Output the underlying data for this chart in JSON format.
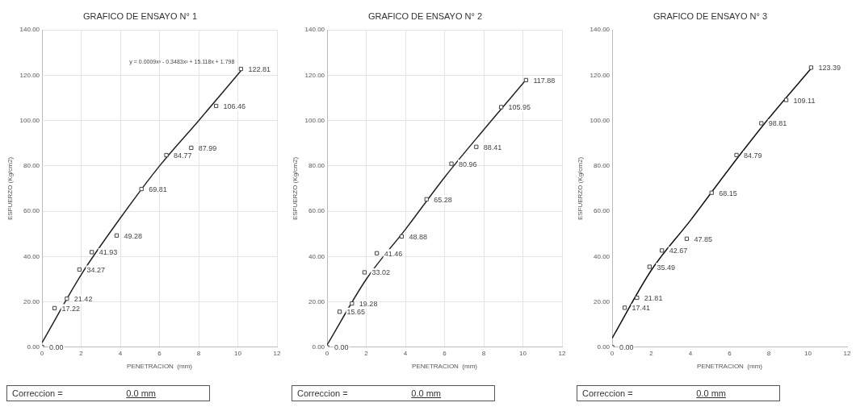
{
  "chart_data": [
    {
      "type": "scatter",
      "title": "GRAFICO DE ENSAYO N° 1",
      "xlabel": "PENETRACION  (mm)",
      "ylabel": "ESFUERZO (Kg/cm2)",
      "xlim": [
        0,
        12
      ],
      "xticks": [
        0,
        2,
        4,
        6,
        8,
        10,
        12
      ],
      "ylim": [
        0,
        140
      ],
      "yticks": [
        {
          "value": 0,
          "label": "0.00"
        },
        {
          "value": 20,
          "label": "20.00"
        },
        {
          "value": 40,
          "label": "40.00"
        },
        {
          "value": 60,
          "label": "60.00"
        },
        {
          "value": 80,
          "label": "80.00"
        },
        {
          "value": 100,
          "label": "100.00"
        },
        {
          "value": 120,
          "label": "120.00"
        },
        {
          "value": 140,
          "label": "140.00"
        }
      ],
      "grid": true,
      "legend": false,
      "series": [
        {
          "type": "scatter",
          "marker": "square",
          "color": "#444444",
          "x": [
            0,
            0.64,
            1.27,
            1.91,
            2.54,
            3.81,
            5.08,
            6.35,
            7.62,
            8.89,
            10.16
          ],
          "values": [
            0,
            17.22,
            21.42,
            34.27,
            41.93,
            49.28,
            69.81,
            84.77,
            87.99,
            106.46,
            122.81
          ],
          "value_labels": [
            "0.00",
            "17.22",
            "21.42",
            "34.27",
            "41.93",
            "49.28",
            "69.81",
            "84.77",
            "87.99",
            "106.46",
            "122.81"
          ]
        },
        {
          "type": "line",
          "color": "#222222",
          "x": [
            0,
            2,
            4,
            6,
            8,
            10.16
          ],
          "values": [
            2,
            32,
            57,
            80,
            100,
            122
          ]
        }
      ],
      "annotations": [
        {
          "text": "y = 0.0009x³ - 0.3483x² + 15.118x + 1.798",
          "x": 10.16,
          "y": 122.81
        },
        "Correccion =",
        "0.0 mm"
      ]
    },
    {
      "type": "scatter",
      "title": "GRAFICO DE ENSAYO N° 2",
      "xlabel": "PENETRACION  (mm)",
      "ylabel": "ESFUERZO (Kg/cm2)",
      "xlim": [
        0,
        12
      ],
      "xticks": [
        0,
        2,
        4,
        6,
        8,
        10,
        12
      ],
      "ylim": [
        0,
        140
      ],
      "yticks": [
        {
          "value": 0,
          "label": "0.00"
        },
        {
          "value": 20,
          "label": "20.00"
        },
        {
          "value": 40,
          "label": "40.00"
        },
        {
          "value": 60,
          "label": "60.00"
        },
        {
          "value": 80,
          "label": "80.00"
        },
        {
          "value": 100,
          "label": "100.00"
        },
        {
          "value": 120,
          "label": "120.00"
        },
        {
          "value": 140,
          "label": "140.00"
        }
      ],
      "grid": true,
      "legend": false,
      "series": [
        {
          "type": "scatter",
          "marker": "square",
          "color": "#444444",
          "x": [
            0,
            0.64,
            1.27,
            1.91,
            2.54,
            3.81,
            5.08,
            6.35,
            7.62,
            8.89,
            10.16
          ],
          "values": [
            0,
            15.65,
            19.28,
            33.02,
            41.46,
            48.88,
            65.28,
            80.96,
            88.41,
            105.95,
            117.88
          ],
          "value_labels": [
            "0.00",
            "15.65",
            "19.28",
            "33.02",
            "41.46",
            "48.88",
            "65.28",
            "80.96",
            "88.41",
            "105.95",
            "117.88"
          ]
        },
        {
          "type": "line",
          "color": "#222222",
          "x": [
            0,
            2,
            4,
            6,
            8,
            10.16
          ],
          "values": [
            1,
            30,
            52,
            75,
            96,
            118
          ]
        }
      ],
      "annotations": [
        "Correccion =",
        "0.0 mm"
      ]
    },
    {
      "type": "scatter",
      "title": "GRAFICO DE ENSAYO N° 3",
      "xlabel": "PENETRACION  (mm)",
      "ylabel": "ESFUERZO (Kg/cm2)",
      "xlim": [
        0,
        12
      ],
      "xticks": [
        0,
        2,
        4,
        6,
        8,
        10,
        12
      ],
      "ylim": [
        0,
        140
      ],
      "yticks": [
        {
          "value": 0,
          "label": "0.00"
        },
        {
          "value": 20,
          "label": "20.00"
        },
        {
          "value": 40,
          "label": "40.00"
        },
        {
          "value": 60,
          "label": "60.00"
        },
        {
          "value": 80,
          "label": "80.00"
        },
        {
          "value": 100,
          "label": "100.00"
        },
        {
          "value": 120,
          "label": "120.00"
        },
        {
          "value": 140,
          "label": "140.00"
        }
      ],
      "grid": false,
      "legend": false,
      "series": [
        {
          "type": "scatter",
          "marker": "square",
          "color": "#444444",
          "x": [
            0,
            0.64,
            1.27,
            1.91,
            2.54,
            3.81,
            5.08,
            6.35,
            7.62,
            8.89,
            10.16
          ],
          "values": [
            0,
            17.41,
            21.81,
            35.49,
            42.67,
            47.85,
            68.15,
            84.79,
            98.81,
            109.11,
            123.39
          ],
          "value_labels": [
            "0.00",
            "17.41",
            "21.81",
            "35.49",
            "42.67",
            "47.85",
            "68.15",
            "84.79",
            "98.81",
            "109.11",
            "123.39"
          ]
        },
        {
          "type": "line",
          "color": "#111111",
          "x": [
            0,
            2,
            4,
            6,
            8,
            10.16
          ],
          "values": [
            4,
            34,
            56,
            79,
            101,
            123
          ]
        }
      ],
      "annotations": [
        "Correccion =",
        "0.0 mm"
      ]
    }
  ]
}
